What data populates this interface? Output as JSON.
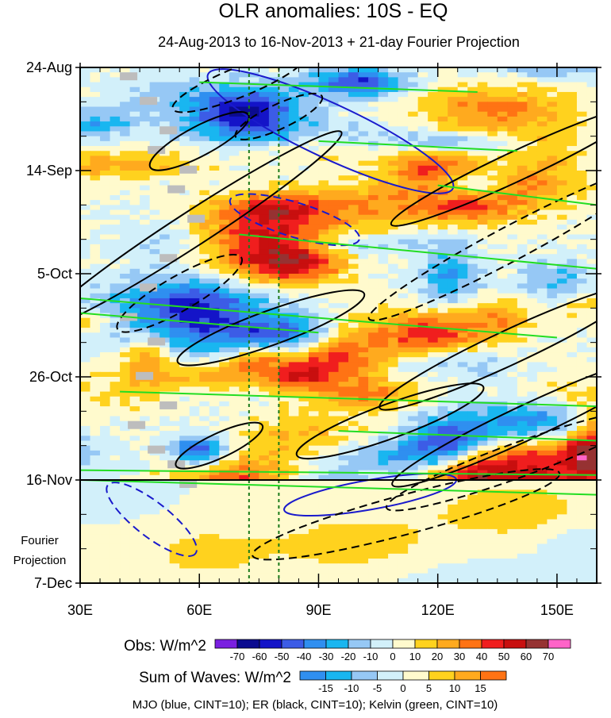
{
  "chart_data": {
    "type": "heatmap",
    "title": "OLR anomalies: 10S - EQ",
    "subtitle": "24-Aug-2013 to 16-Nov-2013 + 21-day Fourier Projection",
    "xlabel": "",
    "ylabel": "",
    "x_ticks": [
      "30E",
      "60E",
      "90E",
      "120E",
      "150E"
    ],
    "x_tick_values": [
      30,
      60,
      90,
      120,
      150
    ],
    "xlim": [
      30,
      160
    ],
    "y_ticks": [
      "24-Aug",
      "14-Sep",
      "5-Oct",
      "26-Oct",
      "16-Nov",
      "7-Dec"
    ],
    "y_tick_days": [
      0,
      21,
      42,
      63,
      84,
      105
    ],
    "ylim_days": [
      0,
      105
    ],
    "projection_start_day": 84,
    "projection_label_line1": "Fourier",
    "projection_label_line2": "Projection",
    "reference_longitudes": [
      72.5,
      80
    ],
    "obs_colorbar": {
      "label": "Obs: W/m^2",
      "levels": [
        "-70",
        "-60",
        "-50",
        "-40",
        "-30",
        "-20",
        "-10",
        "0",
        "10",
        "20",
        "30",
        "40",
        "50",
        "60",
        "70"
      ],
      "colors": [
        "#7a1fe0",
        "#0b0b90",
        "#1414c8",
        "#3c5ce6",
        "#2f8ff0",
        "#19b6f0",
        "#96c8f5",
        "#d2f0fa",
        "#fffacd",
        "#ffd21e",
        "#ffaa1e",
        "#ff7314",
        "#f01e1e",
        "#c80f0f",
        "#963232",
        "#ff64c8"
      ]
    },
    "waves_colorbar": {
      "label": "Sum of Waves: W/m^2",
      "levels": [
        "-15",
        "-10",
        "-5",
        "0",
        "5",
        "10",
        "15"
      ],
      "colors": [
        "#2f8ff0",
        "#19b6f0",
        "#96c8f5",
        "#d2f0fa",
        "#fffacd",
        "#ffd21e",
        "#ffaa1e",
        "#ff7314"
      ]
    },
    "footnote": "MJO (blue, CINT=10); ER (black, CINT=10); Kelvin (green, CINT=10)",
    "contour_series": [
      {
        "name": "MJO",
        "color": "#1a1acc",
        "cint": 10
      },
      {
        "name": "ER",
        "color": "#000000",
        "cint": 10
      },
      {
        "name": "Kelvin",
        "color": "#22dd22",
        "cint": 10
      }
    ]
  }
}
